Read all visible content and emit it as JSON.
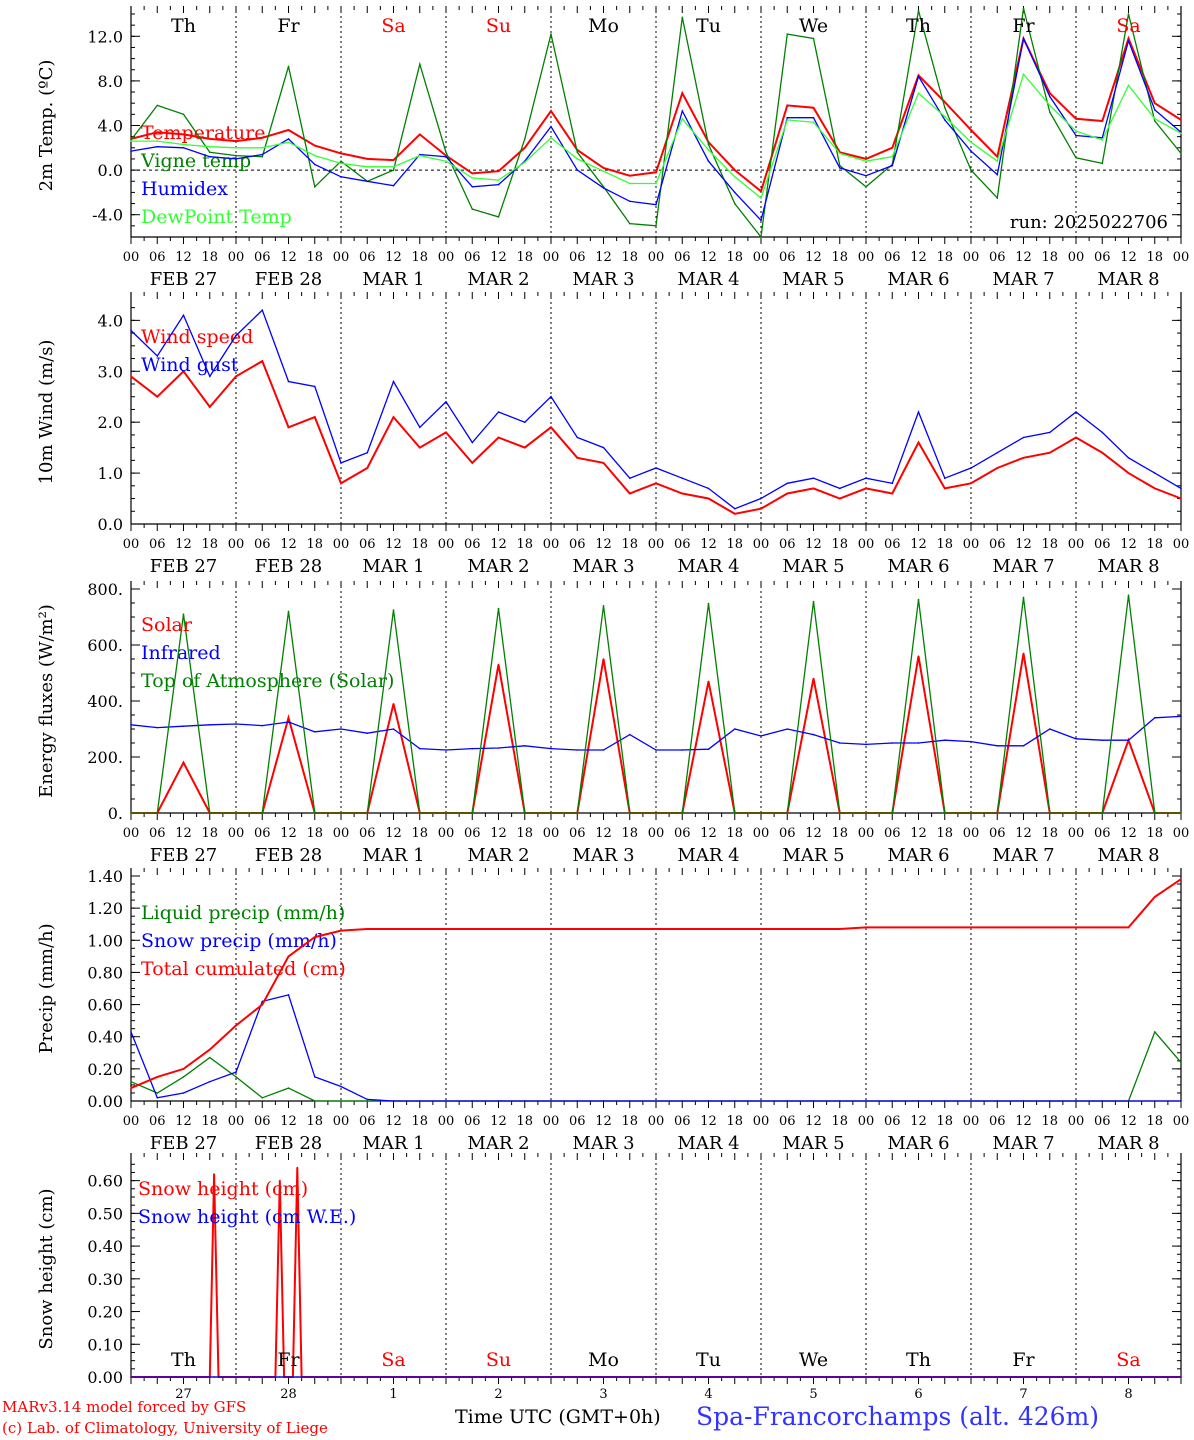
{
  "colors": {
    "red": "#ff0000",
    "green": "#008000",
    "blue": "#0000ff",
    "lightgreen": "#33ff33",
    "footer_blue": "#3333ff"
  },
  "days": {
    "dow": [
      "Th",
      "Fr",
      "Sa",
      "Su",
      "Mo",
      "Tu",
      "We",
      "Th",
      "Fr",
      "Sa"
    ],
    "weekend": [
      false,
      false,
      true,
      true,
      false,
      false,
      false,
      false,
      false,
      true
    ],
    "dates": [
      "FEB 27",
      "FEB 28",
      "MAR 1",
      "MAR 2",
      "MAR 3",
      "MAR 4",
      "MAR 5",
      "MAR 6",
      "MAR 7",
      "MAR 8"
    ],
    "day_numbers": [
      "27",
      "28",
      "1",
      "2",
      "3",
      "4",
      "5",
      "6",
      "7",
      "8"
    ],
    "hour_ticks": [
      "00",
      "06",
      "12",
      "18"
    ],
    "end_tick": "00"
  },
  "footer": {
    "model": "MARv3.14 model forced by GFS",
    "credit": "(c) Lab. of Climatology, University of Liege",
    "time_axis": "Time UTC (GMT+0h)",
    "station": "Spa-Francorchamps (alt. 426m)"
  },
  "chart_data": [
    {
      "type": "line",
      "ylabel": "2m Temp. (ºC)",
      "ylim": [
        -6,
        14
      ],
      "yticks": [
        "-4.0",
        "0.0",
        "4.0",
        "8.0",
        "12.0"
      ],
      "yticks_values": [
        -4,
        0,
        4,
        8,
        12
      ],
      "run_label": "run: 2025022706",
      "x_hours": [
        0,
        6,
        12,
        18,
        24,
        30,
        36,
        42,
        48,
        54,
        60,
        66,
        72,
        78,
        84,
        90,
        96,
        102,
        108,
        114,
        120,
        126,
        132,
        138,
        144,
        150,
        156,
        162,
        168,
        174,
        180,
        186,
        192,
        198,
        204,
        210,
        216,
        222,
        228,
        234,
        240
      ],
      "series": [
        {
          "name": "Temperature",
          "color": "red",
          "values": [
            2.8,
            3.4,
            3.2,
            2.8,
            2.6,
            2.9,
            3.6,
            2.2,
            1.5,
            1.0,
            0.9,
            3.2,
            1.3,
            -0.3,
            -0.1,
            2.0,
            5.3,
            1.8,
            0.2,
            -0.5,
            -0.2,
            6.9,
            2.5,
            0.0,
            -1.9,
            5.8,
            5.6,
            1.6,
            1.0,
            2.0,
            8.5,
            6.1,
            3.6,
            1.2,
            11.8,
            6.9,
            4.6,
            4.4,
            11.8,
            6.0,
            4.5
          ]
        },
        {
          "name": "Vigne temp",
          "color": "green",
          "values": [
            2.7,
            5.8,
            5.0,
            1.6,
            1.3,
            1.2,
            9.3,
            -1.5,
            0.8,
            -1.0,
            0.0,
            9.5,
            1.6,
            -3.5,
            -4.2,
            2.8,
            12.2,
            1.6,
            -1.5,
            -4.8,
            -5.0,
            13.7,
            2.3,
            -3.0,
            -6.0,
            12.2,
            11.8,
            0.4,
            -1.5,
            0.5,
            14.3,
            5.6,
            0.0,
            -2.5,
            14.5,
            5.2,
            1.1,
            0.6,
            14.0,
            4.4,
            1.5
          ]
        },
        {
          "name": "Humidex",
          "color": "blue",
          "values": [
            1.7,
            2.1,
            2.0,
            1.2,
            1.0,
            1.4,
            2.8,
            0.5,
            -0.6,
            -1.0,
            -1.4,
            1.4,
            1.2,
            -1.5,
            -1.3,
            0.8,
            3.9,
            0.0,
            -1.6,
            -2.8,
            -3.1,
            5.3,
            0.8,
            -2.0,
            -4.5,
            4.7,
            4.7,
            0.2,
            -0.5,
            0.4,
            8.4,
            4.5,
            1.7,
            -0.4,
            11.8,
            6.6,
            3.1,
            2.9,
            11.6,
            5.4,
            3.4
          ]
        },
        {
          "name": "DewPoint Temp",
          "color": "lightgreen",
          "values": [
            2.6,
            2.6,
            2.3,
            2.1,
            2.0,
            2.0,
            2.5,
            1.3,
            0.6,
            0.3,
            0.3,
            1.3,
            0.8,
            -0.7,
            -0.9,
            0.7,
            2.9,
            1.0,
            -0.1,
            -1.2,
            -1.2,
            4.6,
            1.8,
            -0.6,
            -2.5,
            4.5,
            4.3,
            1.5,
            0.8,
            1.2,
            6.9,
            4.8,
            2.5,
            0.8,
            8.6,
            5.8,
            3.5,
            2.7,
            7.6,
            4.6,
            3.3
          ]
        }
      ]
    },
    {
      "type": "line",
      "ylabel": "10m Wind (m/s)",
      "ylim": [
        0,
        4.4
      ],
      "yticks": [
        "0.0",
        "1.0",
        "2.0",
        "3.0",
        "4.0"
      ],
      "yticks_values": [
        0,
        1,
        2,
        3,
        4
      ],
      "x_hours": [
        0,
        6,
        12,
        18,
        24,
        30,
        36,
        42,
        48,
        54,
        60,
        66,
        72,
        78,
        84,
        90,
        96,
        102,
        108,
        114,
        120,
        126,
        132,
        138,
        144,
        150,
        156,
        162,
        168,
        174,
        180,
        186,
        192,
        198,
        204,
        210,
        216,
        222,
        228,
        234,
        240
      ],
      "series": [
        {
          "name": "Wind speed",
          "color": "red",
          "values": [
            2.9,
            2.5,
            3.0,
            2.3,
            2.9,
            3.2,
            1.9,
            2.1,
            0.8,
            1.1,
            2.1,
            1.5,
            1.8,
            1.2,
            1.7,
            1.5,
            1.9,
            1.3,
            1.2,
            0.6,
            0.8,
            0.6,
            0.5,
            0.2,
            0.3,
            0.6,
            0.7,
            0.5,
            0.7,
            0.6,
            1.6,
            0.7,
            0.8,
            1.1,
            1.3,
            1.4,
            1.7,
            1.4,
            1.0,
            0.7,
            0.5
          ]
        },
        {
          "name": "Wind gust",
          "color": "blue",
          "values": [
            3.8,
            3.3,
            4.1,
            2.9,
            3.7,
            4.2,
            2.8,
            2.7,
            1.2,
            1.4,
            2.8,
            1.9,
            2.4,
            1.6,
            2.2,
            2.0,
            2.5,
            1.7,
            1.5,
            0.9,
            1.1,
            0.9,
            0.7,
            0.3,
            0.5,
            0.8,
            0.9,
            0.7,
            0.9,
            0.8,
            2.2,
            0.9,
            1.1,
            1.4,
            1.7,
            1.8,
            2.2,
            1.8,
            1.3,
            1.0,
            0.7
          ]
        }
      ]
    },
    {
      "type": "line",
      "ylabel": "Energy fluxes (W/m²)",
      "ylim": [
        0,
        800
      ],
      "yticks": [
        "0.",
        "200.",
        "400.",
        "600.",
        "800."
      ],
      "yticks_values": [
        0,
        200,
        400,
        600,
        800
      ],
      "x_hours": [
        0,
        6,
        12,
        18,
        24,
        30,
        36,
        42,
        48,
        54,
        60,
        66,
        72,
        78,
        84,
        90,
        96,
        102,
        108,
        114,
        120,
        126,
        132,
        138,
        144,
        150,
        156,
        162,
        168,
        174,
        180,
        186,
        192,
        198,
        204,
        210,
        216,
        222,
        228,
        234,
        240
      ],
      "series": [
        {
          "name": "Solar",
          "color": "red",
          "values": [
            0,
            0,
            180,
            0,
            0,
            0,
            340,
            0,
            0,
            0,
            390,
            0,
            0,
            0,
            530,
            0,
            0,
            0,
            550,
            0,
            0,
            0,
            470,
            0,
            0,
            0,
            480,
            0,
            0,
            0,
            560,
            0,
            0,
            0,
            570,
            0,
            0,
            0,
            260,
            0,
            0
          ]
        },
        {
          "name": "Infrared",
          "color": "blue",
          "values": [
            315,
            305,
            310,
            315,
            318,
            312,
            325,
            290,
            300,
            285,
            300,
            230,
            225,
            230,
            232,
            240,
            230,
            225,
            225,
            280,
            225,
            225,
            228,
            300,
            275,
            300,
            280,
            250,
            245,
            250,
            250,
            260,
            255,
            240,
            240,
            300,
            265,
            260,
            260,
            340,
            345
          ]
        },
        {
          "name": "Top of Atmosphere (Solar)",
          "color": "green",
          "values": [
            0,
            0,
            710,
            0,
            0,
            0,
            720,
            0,
            0,
            0,
            725,
            0,
            0,
            0,
            730,
            0,
            0,
            0,
            740,
            0,
            0,
            0,
            748,
            0,
            0,
            0,
            755,
            0,
            0,
            0,
            762,
            0,
            0,
            0,
            770,
            0,
            0,
            0,
            778,
            0,
            0
          ]
        }
      ]
    },
    {
      "type": "line",
      "ylabel": "Precip (mm/h)",
      "ylim": [
        0,
        1.4
      ],
      "yticks": [
        "0.00",
        "0.20",
        "0.40",
        "0.60",
        "0.80",
        "1.00",
        "1.20",
        "1.40"
      ],
      "yticks_values": [
        0,
        0.2,
        0.4,
        0.6,
        0.8,
        1.0,
        1.2,
        1.4
      ],
      "x_hours": [
        0,
        6,
        12,
        18,
        24,
        30,
        36,
        42,
        48,
        54,
        60,
        66,
        72,
        78,
        84,
        90,
        96,
        102,
        108,
        114,
        120,
        126,
        132,
        138,
        144,
        150,
        156,
        162,
        168,
        174,
        180,
        186,
        192,
        198,
        204,
        210,
        216,
        222,
        228,
        234,
        240
      ],
      "series": [
        {
          "name": "Liquid precip (mm/h)",
          "color": "green",
          "values": [
            0.12,
            0.05,
            0.15,
            0.27,
            0.15,
            0.02,
            0.08,
            0,
            0,
            0,
            0,
            0,
            0,
            0,
            0,
            0,
            0,
            0,
            0,
            0,
            0,
            0,
            0,
            0,
            0,
            0,
            0,
            0,
            0,
            0,
            0,
            0,
            0,
            0,
            0,
            0,
            0,
            0,
            0,
            0.43,
            0.24
          ]
        },
        {
          "name": "Snow precip (mm/h)",
          "color": "blue",
          "values": [
            0.43,
            0.02,
            0.05,
            0.12,
            0.18,
            0.62,
            0.66,
            0.15,
            0.09,
            0.01,
            0,
            0,
            0,
            0,
            0,
            0,
            0,
            0,
            0,
            0,
            0,
            0,
            0,
            0,
            0,
            0,
            0,
            0,
            0,
            0,
            0,
            0,
            0,
            0,
            0,
            0,
            0,
            0,
            0,
            0,
            0
          ]
        },
        {
          "name": "Total cumulated (cm)",
          "color": "red",
          "values": [
            0.08,
            0.15,
            0.2,
            0.32,
            0.47,
            0.6,
            0.9,
            1.02,
            1.06,
            1.07,
            1.07,
            1.07,
            1.07,
            1.07,
            1.07,
            1.07,
            1.07,
            1.07,
            1.07,
            1.07,
            1.07,
            1.07,
            1.07,
            1.07,
            1.07,
            1.07,
            1.07,
            1.07,
            1.08,
            1.08,
            1.08,
            1.08,
            1.08,
            1.08,
            1.08,
            1.08,
            1.08,
            1.08,
            1.08,
            1.27,
            1.38
          ]
        }
      ]
    },
    {
      "type": "line",
      "ylabel": "Snow height (cm)",
      "ylim": [
        0,
        0.66
      ],
      "yticks": [
        "0.00",
        "0.10",
        "0.20",
        "0.30",
        "0.40",
        "0.50",
        "0.60"
      ],
      "yticks_values": [
        0,
        0.1,
        0.2,
        0.3,
        0.4,
        0.5,
        0.6
      ],
      "x_hours": [
        0,
        18,
        19,
        20,
        21,
        33,
        34,
        35,
        37,
        38,
        39,
        40,
        240
      ],
      "series": [
        {
          "name": "Snow height (cm)",
          "color": "red",
          "values": [
            0,
            0,
            0.62,
            0,
            0,
            0,
            0.6,
            0,
            0,
            0.64,
            0,
            0,
            0
          ]
        },
        {
          "name": "Snow height (cm W.E.)",
          "color": "blue",
          "values": [
            0,
            0,
            0,
            0,
            0,
            0,
            0,
            0,
            0,
            0,
            0,
            0,
            0
          ]
        }
      ]
    }
  ]
}
